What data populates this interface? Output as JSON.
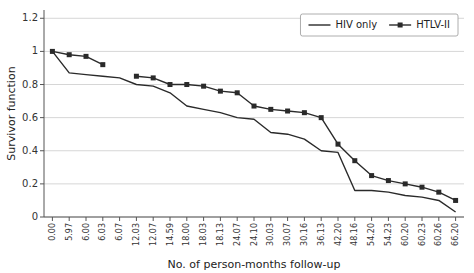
{
  "chart_data": {
    "type": "line",
    "x_label": "No. of person-months follow-up",
    "y_label": "Survivor function",
    "categories": [
      "0.00",
      "5.97",
      "6.00",
      "6.03",
      "6.07",
      "12.03",
      "12.07",
      "14.59",
      "18.00",
      "18.03",
      "18.13",
      "24.07",
      "24.10",
      "30.03",
      "30.07",
      "30.16",
      "36.13",
      "42.20",
      "48.16",
      "54.20",
      "54.23",
      "60.20",
      "60.23",
      "60.26",
      "66.20"
    ],
    "series": [
      {
        "name": "HIV only",
        "color": "#2a2a2a",
        "marker": "none",
        "values": [
          1.0,
          0.87,
          0.86,
          0.85,
          0.84,
          0.8,
          0.79,
          0.75,
          0.67,
          0.65,
          0.63,
          0.6,
          0.59,
          0.51,
          0.5,
          0.47,
          0.4,
          0.39,
          0.16,
          0.16,
          0.15,
          0.13,
          0.12,
          0.1,
          0.03
        ]
      },
      {
        "name": "HTLV-II",
        "color": "#2a2a2a",
        "marker": "square",
        "values": [
          1.0,
          0.98,
          0.97,
          0.92,
          null,
          0.85,
          0.84,
          0.8,
          0.8,
          0.79,
          0.76,
          0.75,
          0.67,
          0.65,
          0.64,
          0.63,
          0.6,
          0.44,
          0.34,
          0.25,
          0.22,
          0.2,
          0.18,
          0.15,
          0.1
        ]
      }
    ],
    "ylim": [
      0.0,
      1.25
    ],
    "yticks": [
      0,
      0.2,
      0.4,
      0.6,
      0.8,
      1,
      1.2
    ],
    "grid": true,
    "legend": "upper right"
  }
}
